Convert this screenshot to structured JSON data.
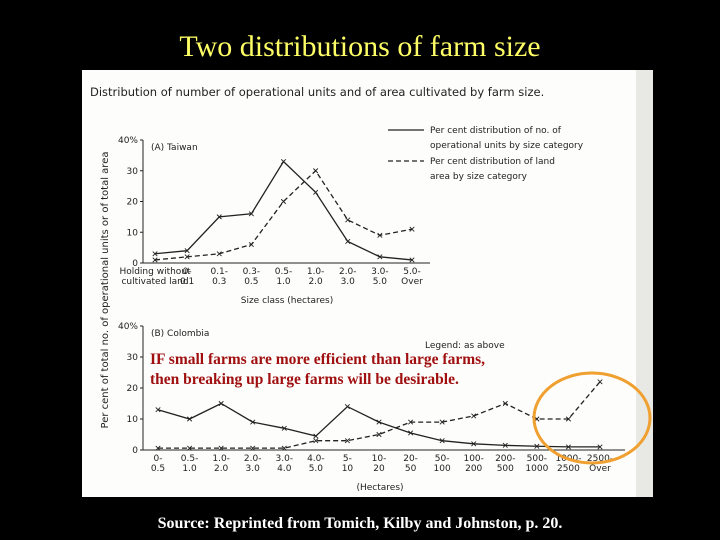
{
  "slide": {
    "title": "Two distributions of farm size",
    "annotation": [
      "IF small farms are more efficient than large farms,",
      "then breaking up large farms will be desirable."
    ],
    "source": "Source: Reprinted from Tomich, Kilby and Johnston, p. 20."
  },
  "figure": {
    "title": "Distribution of number of operational units and of area cultivated by farm size.",
    "y_label": "Per cent of total no. of operational units or of total area"
  },
  "chart_data": [
    {
      "type": "line",
      "title": "(A) Taiwan",
      "x_label": "Size class (hectares)",
      "categories": [
        "Holding without cultivated land",
        "0-0.1",
        "0.1-0.3",
        "0.3-0.5",
        "0.5-1.0",
        "1.0-2.0",
        "2.0-3.0",
        "3.0-5.0",
        "5.0-Over"
      ],
      "series": [
        {
          "name": "Per cent distribution of no. of operational units by size category",
          "color": "#222222",
          "dash": false,
          "values": [
            3,
            4,
            15,
            16,
            33,
            23,
            7,
            2,
            1
          ]
        },
        {
          "name": "Per cent distribution of land area by size category",
          "color": "#222222",
          "dash": true,
          "values": [
            1,
            2,
            3,
            6,
            20,
            30,
            14,
            9,
            11
          ]
        }
      ],
      "ylim": [
        0,
        40
      ],
      "yticks": [
        0,
        10,
        20,
        30,
        {
          "value": 40,
          "label": "40%"
        }
      ]
    },
    {
      "type": "line",
      "title": "(B) Colombia",
      "x_label": "(Hectares)",
      "legend_note": "Legend: as above",
      "categories": [
        "0-0.5",
        "0.5-1.0",
        "1.0-2.0",
        "2.0-3.0",
        "3.0-4.0",
        "4.0-5.0",
        "5-10",
        "10-20",
        "20-50",
        "50-100",
        "100-200",
        "200-500",
        "500-1000",
        "1000-2500",
        "2500-Over"
      ],
      "series": [
        {
          "color": "#222222",
          "dash": false,
          "values": [
            13,
            10,
            15,
            9,
            7,
            4.5,
            14,
            9,
            5.5,
            3,
            2,
            1.5,
            1.2,
            1,
            1
          ]
        },
        {
          "color": "#222222",
          "dash": true,
          "values": [
            0.6,
            0.6,
            0.6,
            0.6,
            0.6,
            3,
            3,
            5,
            9,
            9,
            11,
            15,
            10,
            10,
            22
          ]
        }
      ],
      "ylim": [
        0,
        40
      ],
      "yticks": [
        0,
        10,
        20,
        30,
        {
          "value": 40,
          "label": "40%"
        }
      ]
    }
  ]
}
